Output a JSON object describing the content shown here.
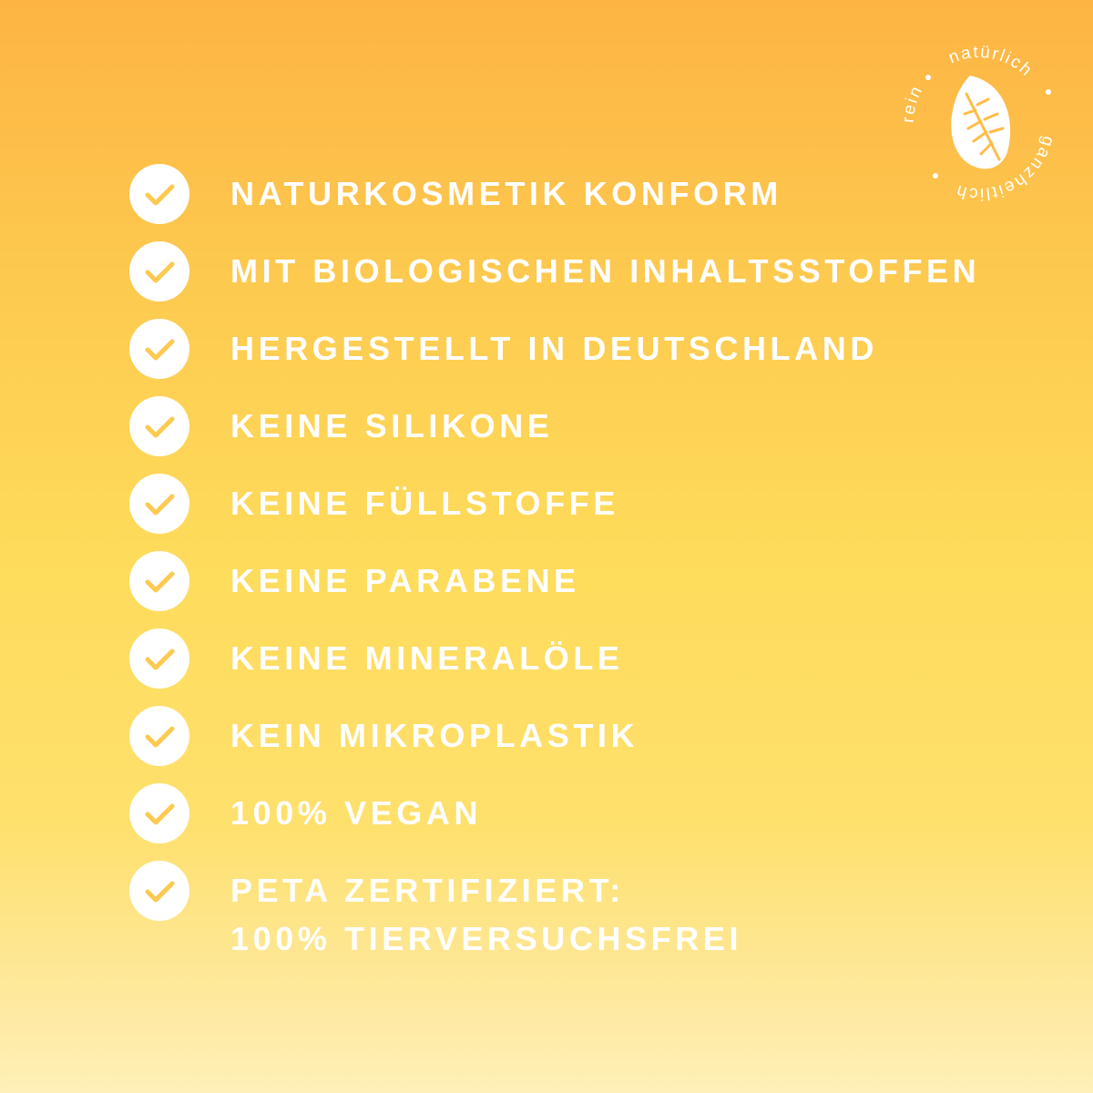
{
  "badge": {
    "words": [
      "natürlich",
      "ganzheitlich",
      "rein"
    ],
    "icon": "leaf-icon"
  },
  "colors": {
    "top": "#fdb443",
    "middle": "#fedb5a",
    "bottom": "#fef0b8",
    "text": "#ffffff",
    "check": "#fdc94f"
  },
  "features": [
    {
      "label": "NATURKOSMETIK KONFORM"
    },
    {
      "label": "MIT BIOLOGISCHEN INHALTSSTOFFEN"
    },
    {
      "label": "HERGESTELLT IN DEUTSCHLAND"
    },
    {
      "label": "KEINE SILIKONE"
    },
    {
      "label": "KEINE FÜLLSTOFFE"
    },
    {
      "label": "KEINE PARABENE"
    },
    {
      "label": "KEINE MINERALÖLE"
    },
    {
      "label": "KEIN MIKROPLASTIK"
    },
    {
      "label": "100% VEGAN"
    },
    {
      "label": "PETA ZERTIFIZIERT:",
      "label2": "100% TIERVERSUCHSFREI"
    }
  ]
}
